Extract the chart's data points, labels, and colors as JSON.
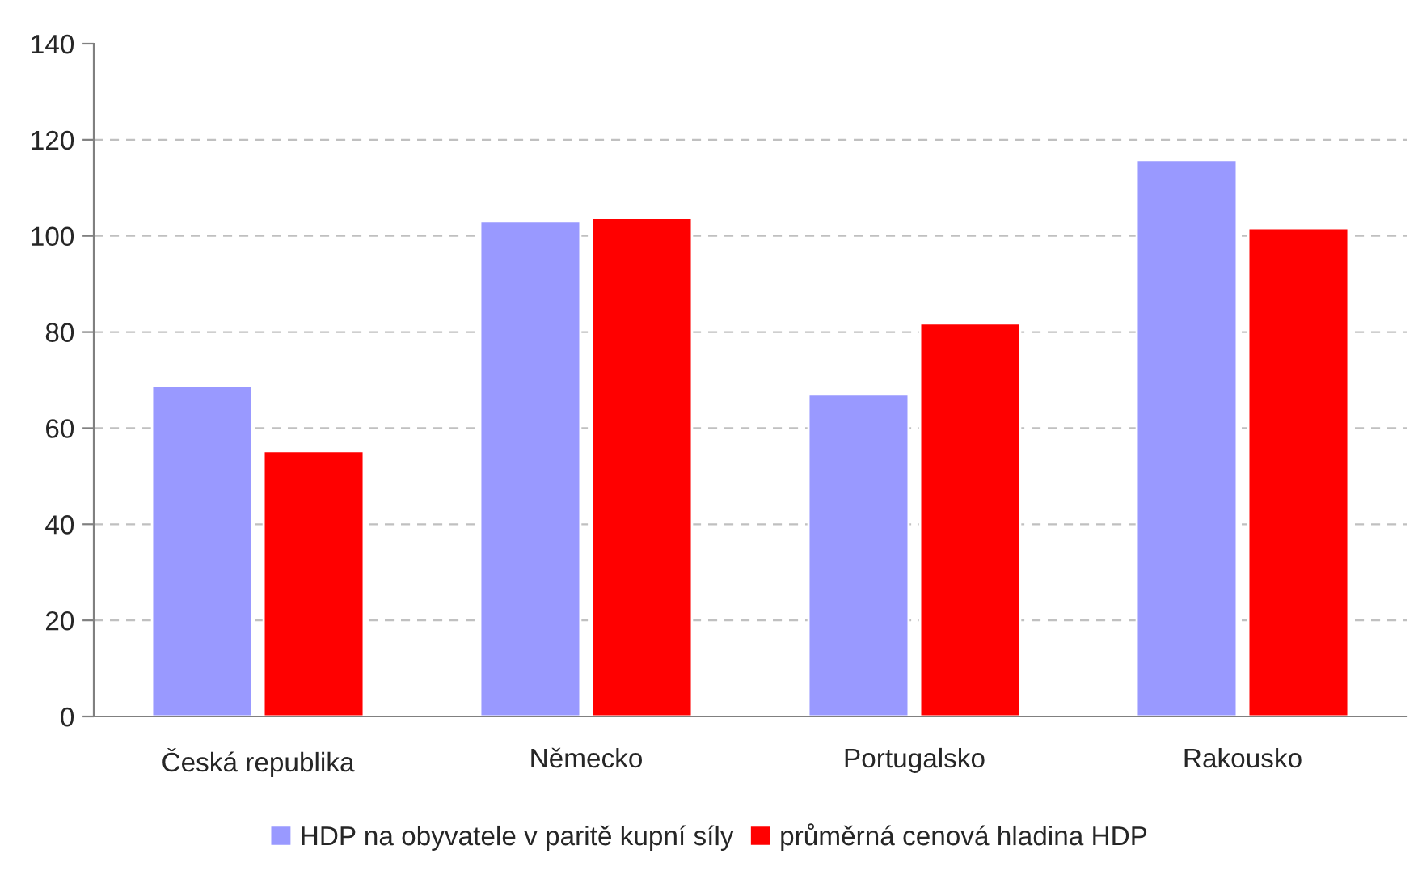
{
  "chart_data": {
    "type": "bar",
    "categories": [
      "Česká republika",
      "Německo",
      "Portugalsko",
      "Rakousko"
    ],
    "series": [
      {
        "name": "HDP na obyvatele v paritě kupní síly",
        "color": "#9999ff",
        "values": [
          68.7,
          103.0,
          67.0,
          115.8
        ]
      },
      {
        "name": "průměrná cenová hladina HDP",
        "color": "#ff0000",
        "values": [
          55.2,
          103.7,
          81.8,
          101.6
        ]
      }
    ],
    "ylim": [
      0,
      140
    ],
    "yticks": [
      0,
      20,
      40,
      60,
      80,
      100,
      120,
      140
    ],
    "grid": "y",
    "legend": "bottom"
  }
}
